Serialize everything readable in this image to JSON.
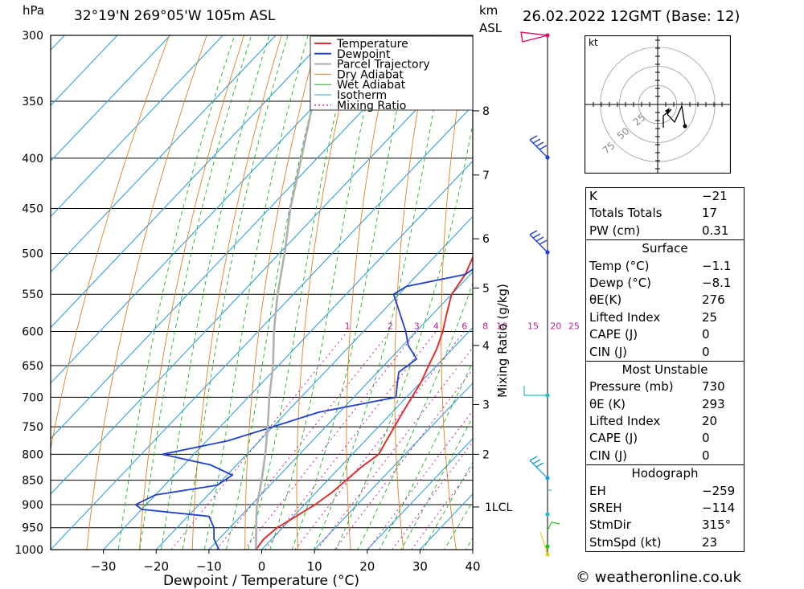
{
  "header": {
    "pressure_unit": "hPa",
    "location": "32°19'N 269°05'W 105m ASL",
    "height_unit": "km",
    "height_ref": "ASL",
    "datetime": "26.02.2022 12GMT (Base: 12)"
  },
  "chart_data": {
    "type": "line",
    "xlabel": "Dewpoint / Temperature (°C)",
    "ylabel": "hPa",
    "xlim": [
      -40,
      40
    ],
    "ylim": [
      1000,
      300
    ],
    "x_ticks": [
      "-30",
      "-20",
      "-10",
      "0",
      "10",
      "20",
      "30",
      "40"
    ],
    "y_ticks": [
      "300",
      "350",
      "400",
      "450",
      "500",
      "550",
      "600",
      "650",
      "700",
      "750",
      "800",
      "850",
      "900",
      "950",
      "1000"
    ],
    "km_ticks": [
      "8",
      "7",
      "6",
      "5",
      "4",
      "3",
      "2",
      "1LCL"
    ],
    "mixing_ratio_label": "Mixing Ratio (g/kg)",
    "mixing_ratio_values": [
      "1",
      "2",
      "3",
      "4",
      "6",
      "8",
      "10",
      "15",
      "20",
      "25"
    ],
    "legend": [
      "Temperature",
      "Dewpoint",
      "Parcel Trajectory",
      "Dry Adiabat",
      "Wet Adiabat",
      "Isotherm",
      "Mixing Ratio"
    ],
    "colors": {
      "temperature": "#e03030",
      "dewpoint": "#2040d0",
      "parcel": "#b0b0b0",
      "dry_adiabat": "#e08020",
      "wet_adiabat": "#20b020",
      "isotherm": "#30a0e0",
      "mixing_ratio": "#c020a0"
    },
    "series": [
      {
        "name": "Temperature",
        "points": [
          [
            1000,
            -1.1
          ],
          [
            975,
            -1.5
          ],
          [
            950,
            -1.0
          ],
          [
            925,
            0.5
          ],
          [
            900,
            2.0
          ],
          [
            875,
            3.0
          ],
          [
            850,
            3.5
          ],
          [
            825,
            4.0
          ],
          [
            800,
            5.0
          ],
          [
            775,
            4.0
          ],
          [
            750,
            3.0
          ],
          [
            725,
            2.0
          ],
          [
            700,
            1.0
          ],
          [
            675,
            0.0
          ],
          [
            650,
            -1.5
          ],
          [
            625,
            -3.0
          ],
          [
            600,
            -5.0
          ],
          [
            575,
            -7.5
          ],
          [
            550,
            -10.0
          ],
          [
            525,
            -11.0
          ],
          [
            500,
            -13.0
          ],
          [
            475,
            -16.0
          ],
          [
            450,
            -19.0
          ],
          [
            425,
            -22.0
          ],
          [
            400,
            -25.5
          ],
          [
            375,
            -29.0
          ],
          [
            350,
            -33.5
          ],
          [
            325,
            -38.0
          ],
          [
            310,
            -40.0
          ],
          [
            300,
            -42.0
          ]
        ]
      },
      {
        "name": "Dewpoint",
        "points": [
          [
            1000,
            -8.1
          ],
          [
            975,
            -11.0
          ],
          [
            950,
            -13.0
          ],
          [
            925,
            -16.0
          ],
          [
            910,
            -30.0
          ],
          [
            900,
            -32.0
          ],
          [
            880,
            -30.0
          ],
          [
            860,
            -20.0
          ],
          [
            840,
            -19.0
          ],
          [
            820,
            -25.0
          ],
          [
            800,
            -36.0
          ],
          [
            775,
            -26.0
          ],
          [
            750,
            -20.0
          ],
          [
            725,
            -14.0
          ],
          [
            700,
            -2.0
          ],
          [
            680,
            -4.0
          ],
          [
            660,
            -6.0
          ],
          [
            640,
            -5.0
          ],
          [
            620,
            -9.0
          ],
          [
            600,
            -12.0
          ],
          [
            550,
            -21.0
          ],
          [
            540,
            -20.0
          ],
          [
            525,
            -11.0
          ],
          [
            500,
            -9.0
          ],
          [
            475,
            -12.0
          ],
          [
            450,
            -19.0
          ],
          [
            425,
            -22.0
          ],
          [
            400,
            -23.0
          ],
          [
            375,
            -27.0
          ],
          [
            350,
            -31.0
          ],
          [
            325,
            -36.0
          ],
          [
            310,
            -42.0
          ],
          [
            300,
            -38.0
          ]
        ]
      },
      {
        "name": "Parcel Trajectory",
        "points": [
          [
            1000,
            -1.1
          ],
          [
            925,
            -7.0
          ],
          [
            900,
            -9.0
          ],
          [
            850,
            -12.5
          ],
          [
            800,
            -16.5
          ],
          [
            750,
            -21.0
          ],
          [
            700,
            -26.0
          ],
          [
            650,
            -31.0
          ],
          [
            600,
            -37.0
          ],
          [
            550,
            -43.0
          ],
          [
            500,
            -49.0
          ],
          [
            450,
            -56.0
          ],
          [
            400,
            -63.0
          ],
          [
            350,
            -71.0
          ],
          [
            300,
            -80.0
          ]
        ]
      }
    ]
  },
  "hodograph": {
    "unit": "kt",
    "ring_labels": [
      "25",
      "50",
      "75"
    ]
  },
  "table": {
    "indices": [
      {
        "k": "K",
        "v": "-21"
      },
      {
        "k": "Totals Totals",
        "v": "17"
      },
      {
        "k": "PW (cm)",
        "v": "0.31"
      }
    ],
    "surface_title": "Surface",
    "surface": [
      {
        "k": "Temp (°C)",
        "v": "-1.1"
      },
      {
        "k": "Dewp (°C)",
        "v": "-8.1"
      },
      {
        "k": "θE(K)",
        "v": "276"
      },
      {
        "k": "Lifted Index",
        "v": "25"
      },
      {
        "k": "CAPE (J)",
        "v": "0"
      },
      {
        "k": "CIN (J)",
        "v": "0"
      }
    ],
    "unstable_title": "Most Unstable",
    "unstable": [
      {
        "k": "Pressure (mb)",
        "v": "730"
      },
      {
        "k": "θE (K)",
        "v": "293"
      },
      {
        "k": "Lifted Index",
        "v": "20"
      },
      {
        "k": "CAPE (J)",
        "v": "0"
      },
      {
        "k": "CIN (J)",
        "v": "0"
      }
    ],
    "hodo_title": "Hodograph",
    "hodo": [
      {
        "k": "EH",
        "v": "-259"
      },
      {
        "k": "SREH",
        "v": "-114"
      },
      {
        "k": "StmDir",
        "v": "315°"
      },
      {
        "k": "StmSpd (kt)",
        "v": "23"
      }
    ]
  },
  "footer": {
    "copyright": "© weatheronline.co.uk"
  }
}
